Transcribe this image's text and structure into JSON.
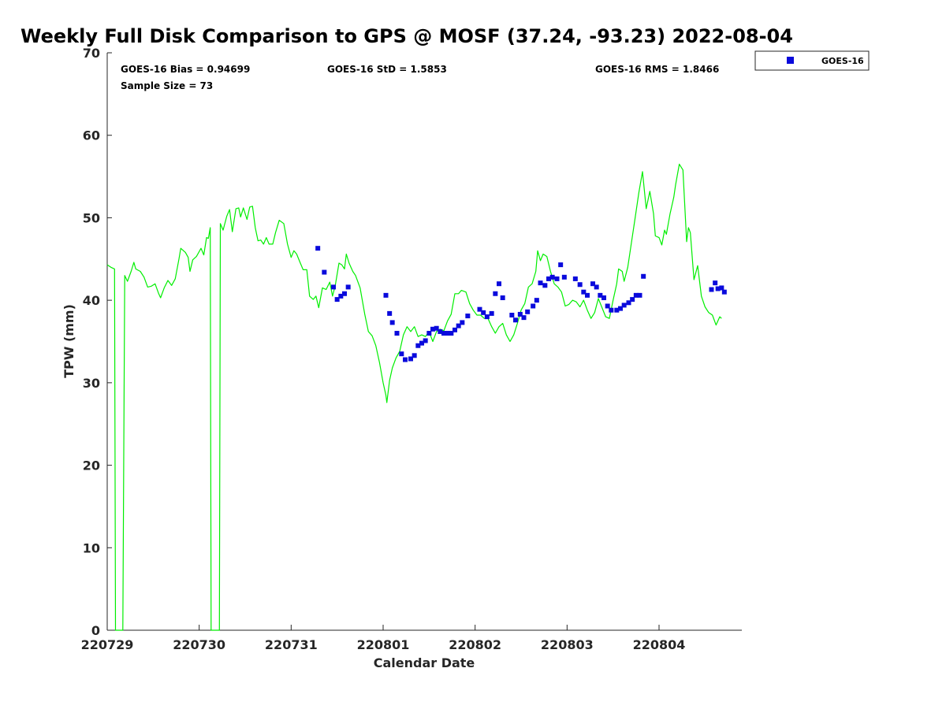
{
  "chart_data": {
    "type": "line+scatter",
    "title": "Weekly Full Disk Comparison to GPS @ MOSF (37.24, -93.23) 2022-08-04",
    "xlabel": "Calendar Date",
    "ylabel": "TPW (mm)",
    "xlim": [
      0,
      6.9
    ],
    "ylim": [
      0,
      70
    ],
    "x_ticks": [
      {
        "value": 0,
        "label": "220729"
      },
      {
        "value": 1,
        "label": "220730"
      },
      {
        "value": 2,
        "label": "220731"
      },
      {
        "value": 3,
        "label": "220801"
      },
      {
        "value": 4,
        "label": "220802"
      },
      {
        "value": 5,
        "label": "220803"
      },
      {
        "value": 6,
        "label": "220804"
      }
    ],
    "y_ticks": [
      0,
      10,
      20,
      30,
      40,
      50,
      60,
      70
    ],
    "x_units": "days since 220729 00Z",
    "stats": {
      "bias": "GOES-16 Bias = 0.94699",
      "std": "GOES-16 StD = 1.5853",
      "rms": "GOES-16 RMS = 1.8466",
      "sample": "Sample Size = 73"
    },
    "legend": {
      "position": "top-right outside",
      "label": "GOES-16"
    },
    "colors": {
      "gps_line": "#00ee00",
      "goes_marker": "#0a0adc"
    },
    "series": [
      {
        "name": "GPS",
        "kind": "line",
        "points": [
          [
            0.0,
            44.3
          ],
          [
            0.04,
            44.0
          ],
          [
            0.08,
            43.8
          ],
          [
            0.09,
            0
          ],
          [
            0.17,
            0
          ],
          [
            0.19,
            43.0
          ],
          [
            0.22,
            42.3
          ],
          [
            0.26,
            43.5
          ],
          [
            0.29,
            44.6
          ],
          [
            0.31,
            43.8
          ],
          [
            0.36,
            43.5
          ],
          [
            0.4,
            42.8
          ],
          [
            0.44,
            41.6
          ],
          [
            0.48,
            41.7
          ],
          [
            0.52,
            42.0
          ],
          [
            0.56,
            40.8
          ],
          [
            0.58,
            40.3
          ],
          [
            0.62,
            41.5
          ],
          [
            0.66,
            42.4
          ],
          [
            0.7,
            41.8
          ],
          [
            0.74,
            42.6
          ],
          [
            0.78,
            45.0
          ],
          [
            0.8,
            46.3
          ],
          [
            0.85,
            45.8
          ],
          [
            0.88,
            45.2
          ],
          [
            0.9,
            43.5
          ],
          [
            0.93,
            44.9
          ],
          [
            0.97,
            45.3
          ],
          [
            1.02,
            46.3
          ],
          [
            1.05,
            45.5
          ],
          [
            1.08,
            47.6
          ],
          [
            1.1,
            47.5
          ],
          [
            1.12,
            48.8
          ],
          [
            1.13,
            0
          ],
          [
            1.22,
            0
          ],
          [
            1.23,
            49.3
          ],
          [
            1.26,
            48.5
          ],
          [
            1.3,
            50.2
          ],
          [
            1.33,
            51.0
          ],
          [
            1.36,
            48.3
          ],
          [
            1.4,
            51.1
          ],
          [
            1.43,
            51.2
          ],
          [
            1.45,
            50.1
          ],
          [
            1.48,
            51.2
          ],
          [
            1.52,
            49.8
          ],
          [
            1.55,
            51.3
          ],
          [
            1.58,
            51.4
          ],
          [
            1.61,
            48.8
          ],
          [
            1.64,
            47.2
          ],
          [
            1.67,
            47.3
          ],
          [
            1.7,
            46.8
          ],
          [
            1.73,
            47.6
          ],
          [
            1.76,
            46.8
          ],
          [
            1.8,
            46.8
          ],
          [
            1.83,
            48.2
          ],
          [
            1.87,
            49.7
          ],
          [
            1.92,
            49.3
          ],
          [
            1.96,
            46.8
          ],
          [
            2.0,
            45.2
          ],
          [
            2.03,
            46.0
          ],
          [
            2.06,
            45.6
          ],
          [
            2.1,
            44.5
          ],
          [
            2.13,
            43.7
          ],
          [
            2.17,
            43.7
          ],
          [
            2.2,
            40.5
          ],
          [
            2.24,
            40.1
          ],
          [
            2.27,
            40.5
          ],
          [
            2.3,
            39.1
          ],
          [
            2.34,
            41.5
          ],
          [
            2.38,
            41.3
          ],
          [
            2.42,
            42.2
          ],
          [
            2.45,
            40.5
          ],
          [
            2.48,
            41.8
          ],
          [
            2.52,
            44.5
          ],
          [
            2.55,
            44.3
          ],
          [
            2.58,
            43.8
          ],
          [
            2.6,
            45.6
          ],
          [
            2.63,
            44.5
          ],
          [
            2.67,
            43.5
          ],
          [
            2.7,
            43.0
          ],
          [
            2.75,
            41.5
          ],
          [
            2.8,
            38.3
          ],
          [
            2.84,
            36.2
          ],
          [
            2.88,
            35.7
          ],
          [
            2.92,
            34.5
          ],
          [
            2.96,
            32.5
          ],
          [
            3.0,
            30.0
          ],
          [
            3.03,
            28.5
          ],
          [
            3.04,
            27.6
          ],
          [
            3.07,
            30.3
          ],
          [
            3.1,
            31.8
          ],
          [
            3.14,
            33.0
          ],
          [
            3.18,
            33.8
          ],
          [
            3.22,
            35.8
          ],
          [
            3.26,
            36.8
          ],
          [
            3.3,
            36.2
          ],
          [
            3.34,
            36.8
          ],
          [
            3.38,
            35.6
          ],
          [
            3.42,
            35.8
          ],
          [
            3.46,
            35.6
          ],
          [
            3.5,
            36.2
          ],
          [
            3.54,
            35.0
          ],
          [
            3.58,
            36.2
          ],
          [
            3.62,
            36.5
          ],
          [
            3.66,
            36.3
          ],
          [
            3.7,
            37.5
          ],
          [
            3.74,
            38.3
          ],
          [
            3.78,
            40.8
          ],
          [
            3.82,
            40.8
          ],
          [
            3.85,
            41.2
          ],
          [
            3.9,
            41.0
          ],
          [
            3.94,
            39.6
          ],
          [
            3.98,
            38.8
          ],
          [
            4.02,
            38.2
          ],
          [
            4.06,
            38.2
          ],
          [
            4.1,
            37.8
          ],
          [
            4.14,
            37.8
          ],
          [
            4.18,
            36.8
          ],
          [
            4.22,
            36.0
          ],
          [
            4.26,
            36.8
          ],
          [
            4.3,
            37.2
          ],
          [
            4.34,
            35.8
          ],
          [
            4.38,
            35.0
          ],
          [
            4.42,
            35.8
          ],
          [
            4.46,
            37.2
          ],
          [
            4.5,
            38.8
          ],
          [
            4.54,
            39.6
          ],
          [
            4.58,
            41.6
          ],
          [
            4.62,
            42.0
          ],
          [
            4.66,
            43.5
          ],
          [
            4.68,
            46.0
          ],
          [
            4.71,
            44.8
          ],
          [
            4.74,
            45.6
          ],
          [
            4.78,
            45.3
          ],
          [
            4.82,
            43.5
          ],
          [
            4.86,
            42.0
          ],
          [
            4.9,
            41.6
          ],
          [
            4.94,
            41.0
          ],
          [
            4.98,
            39.3
          ],
          [
            5.02,
            39.5
          ],
          [
            5.06,
            40.0
          ],
          [
            5.1,
            39.8
          ],
          [
            5.14,
            39.2
          ],
          [
            5.18,
            40.0
          ],
          [
            5.22,
            38.8
          ],
          [
            5.26,
            37.8
          ],
          [
            5.3,
            38.5
          ],
          [
            5.34,
            40.2
          ],
          [
            5.38,
            39.1
          ],
          [
            5.42,
            38.0
          ],
          [
            5.46,
            37.8
          ],
          [
            5.5,
            40.0
          ],
          [
            5.54,
            42.0
          ],
          [
            5.56,
            43.8
          ],
          [
            5.6,
            43.5
          ],
          [
            5.62,
            42.3
          ],
          [
            5.66,
            44.0
          ],
          [
            5.7,
            47.0
          ],
          [
            5.74,
            50.0
          ],
          [
            5.78,
            53.0
          ],
          [
            5.82,
            55.6
          ],
          [
            5.86,
            51.1
          ],
          [
            5.9,
            53.2
          ],
          [
            5.94,
            50.5
          ],
          [
            5.96,
            47.8
          ],
          [
            6.0,
            47.6
          ],
          [
            6.03,
            46.7
          ],
          [
            6.06,
            48.5
          ],
          [
            6.08,
            48.0
          ],
          [
            6.12,
            50.5
          ],
          [
            6.16,
            52.5
          ],
          [
            6.18,
            54.0
          ],
          [
            6.22,
            56.5
          ],
          [
            6.26,
            55.8
          ],
          [
            6.3,
            47.1
          ],
          [
            6.32,
            48.8
          ],
          [
            6.34,
            48.2
          ],
          [
            6.38,
            42.5
          ],
          [
            6.42,
            44.2
          ],
          [
            6.46,
            40.5
          ],
          [
            6.5,
            39.2
          ],
          [
            6.54,
            38.5
          ],
          [
            6.58,
            38.2
          ],
          [
            6.62,
            37.0
          ],
          [
            6.66,
            38.0
          ],
          [
            6.68,
            37.8
          ]
        ]
      },
      {
        "name": "GOES-16",
        "kind": "scatter",
        "points": [
          [
            2.29,
            46.3
          ],
          [
            2.36,
            43.4
          ],
          [
            2.46,
            41.6
          ],
          [
            2.5,
            40.1
          ],
          [
            2.54,
            40.5
          ],
          [
            2.58,
            40.8
          ],
          [
            2.62,
            41.6
          ],
          [
            3.03,
            40.6
          ],
          [
            3.07,
            38.4
          ],
          [
            3.1,
            37.3
          ],
          [
            3.15,
            36.0
          ],
          [
            3.2,
            33.5
          ],
          [
            3.24,
            32.8
          ],
          [
            3.3,
            32.9
          ],
          [
            3.34,
            33.3
          ],
          [
            3.38,
            34.5
          ],
          [
            3.42,
            34.8
          ],
          [
            3.46,
            35.1
          ],
          [
            3.5,
            36.0
          ],
          [
            3.54,
            36.5
          ],
          [
            3.58,
            36.6
          ],
          [
            3.62,
            36.2
          ],
          [
            3.66,
            36.0
          ],
          [
            3.7,
            36.0
          ],
          [
            3.74,
            36.0
          ],
          [
            3.78,
            36.4
          ],
          [
            3.82,
            36.9
          ],
          [
            3.86,
            37.3
          ],
          [
            3.92,
            38.1
          ],
          [
            4.05,
            38.9
          ],
          [
            4.09,
            38.5
          ],
          [
            4.13,
            38.0
          ],
          [
            4.18,
            38.4
          ],
          [
            4.22,
            40.8
          ],
          [
            4.26,
            42.0
          ],
          [
            4.3,
            40.3
          ],
          [
            4.4,
            38.2
          ],
          [
            4.44,
            37.6
          ],
          [
            4.49,
            38.3
          ],
          [
            4.53,
            37.9
          ],
          [
            4.57,
            38.6
          ],
          [
            4.63,
            39.3
          ],
          [
            4.67,
            40.0
          ],
          [
            4.71,
            42.1
          ],
          [
            4.76,
            41.8
          ],
          [
            4.8,
            42.6
          ],
          [
            4.84,
            42.8
          ],
          [
            4.89,
            42.6
          ],
          [
            4.93,
            44.3
          ],
          [
            4.97,
            42.8
          ],
          [
            5.09,
            42.6
          ],
          [
            5.14,
            41.9
          ],
          [
            5.18,
            41.0
          ],
          [
            5.22,
            40.6
          ],
          [
            5.28,
            42.0
          ],
          [
            5.32,
            41.6
          ],
          [
            5.36,
            40.6
          ],
          [
            5.4,
            40.3
          ],
          [
            5.44,
            39.3
          ],
          [
            5.48,
            38.8
          ],
          [
            5.54,
            38.8
          ],
          [
            5.58,
            39.0
          ],
          [
            5.62,
            39.4
          ],
          [
            5.67,
            39.7
          ],
          [
            5.71,
            40.1
          ],
          [
            5.75,
            40.6
          ],
          [
            5.79,
            40.6
          ],
          [
            5.83,
            42.9
          ],
          [
            6.57,
            41.3
          ],
          [
            6.61,
            42.1
          ],
          [
            6.64,
            41.4
          ],
          [
            6.68,
            41.5
          ],
          [
            6.71,
            41.0
          ]
        ]
      }
    ]
  }
}
